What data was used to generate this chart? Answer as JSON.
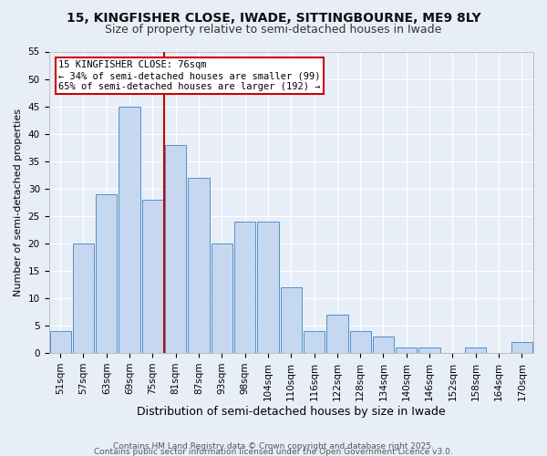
{
  "title1": "15, KINGFISHER CLOSE, IWADE, SITTINGBOURNE, ME9 8LY",
  "title2": "Size of property relative to semi-detached houses in Iwade",
  "xlabel": "Distribution of semi-detached houses by size in Iwade",
  "ylabel": "Number of semi-detached properties",
  "categories": [
    "51sqm",
    "57sqm",
    "63sqm",
    "69sqm",
    "75sqm",
    "81sqm",
    "87sqm",
    "93sqm",
    "98sqm",
    "104sqm",
    "110sqm",
    "116sqm",
    "122sqm",
    "128sqm",
    "134sqm",
    "140sqm",
    "146sqm",
    "152sqm",
    "158sqm",
    "164sqm",
    "170sqm"
  ],
  "values": [
    4,
    20,
    29,
    45,
    28,
    38,
    32,
    20,
    24,
    24,
    12,
    4,
    7,
    4,
    3,
    1,
    1,
    0,
    1,
    0,
    2
  ],
  "bar_color": "#c5d8f0",
  "bar_edge_color": "#5090c8",
  "red_line_x": 4.5,
  "annotation_title": "15 KINGFISHER CLOSE: 76sqm",
  "annotation_line1": "← 34% of semi-detached houses are smaller (99)",
  "annotation_line2": "65% of semi-detached houses are larger (192) →",
  "annotation_box_facecolor": "#ffffff",
  "annotation_box_edgecolor": "#cc0000",
  "red_line_color": "#cc0000",
  "ylim": [
    0,
    55
  ],
  "yticks": [
    0,
    5,
    10,
    15,
    20,
    25,
    30,
    35,
    40,
    45,
    50,
    55
  ],
  "background_color": "#e8eef8",
  "grid_color": "#ffffff",
  "footer_line1": "Contains HM Land Registry data © Crown copyright and database right 2025.",
  "footer_line2": "Contains public sector information licensed under the Open Government Licence v3.0.",
  "title1_fontsize": 10,
  "title2_fontsize": 9,
  "xlabel_fontsize": 9,
  "ylabel_fontsize": 8,
  "tick_fontsize": 7.5,
  "annotation_fontsize": 7.5,
  "footer_fontsize": 6.5
}
